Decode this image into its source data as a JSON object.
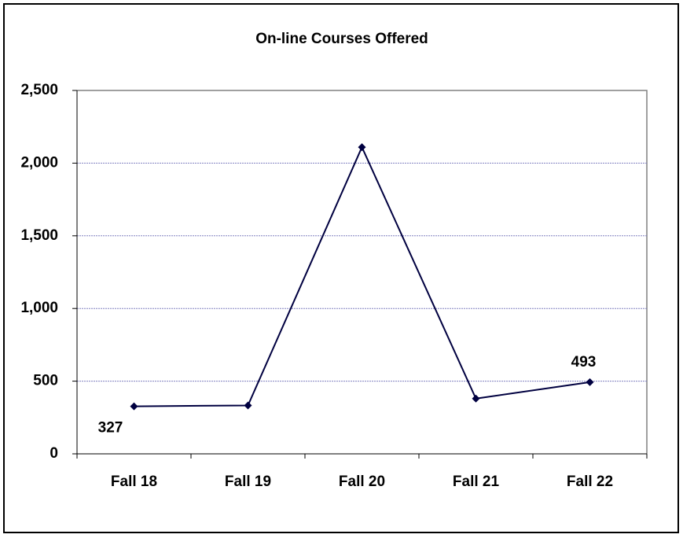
{
  "chart_data": {
    "type": "line",
    "title": "On-line Courses Offered",
    "categories": [
      "Fall 18",
      "Fall 19",
      "Fall 20",
      "Fall 21",
      "Fall 22"
    ],
    "series": [
      {
        "name": "On-line Courses Offered",
        "color": "#000040",
        "values": [
          327,
          333,
          2110,
          380,
          493
        ],
        "value_labels": [
          "327",
          null,
          null,
          null,
          "493"
        ]
      }
    ],
    "ylim": [
      0,
      2500
    ],
    "yticks": [
      0,
      500,
      {
        "value": 1000,
        "label": "1,000"
      },
      {
        "value": 1500,
        "label": "1,500"
      },
      {
        "value": 2000,
        "label": "2,000"
      },
      {
        "value": 2500,
        "label": "2,500"
      }
    ],
    "grid": true
  }
}
